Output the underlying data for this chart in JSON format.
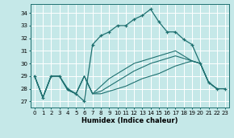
{
  "xlabel": "Humidex (Indice chaleur)",
  "bg_color": "#c5e8e8",
  "grid_color": "#ffffff",
  "line_color": "#1e7070",
  "xlim": [
    -0.5,
    23.5
  ],
  "ylim": [
    26.5,
    34.7
  ],
  "yticks": [
    27,
    28,
    29,
    30,
    31,
    32,
    33,
    34
  ],
  "xticks": [
    0,
    1,
    2,
    3,
    4,
    5,
    6,
    7,
    8,
    9,
    10,
    11,
    12,
    13,
    14,
    15,
    16,
    17,
    18,
    19,
    20,
    21,
    22,
    23
  ],
  "curve_main": [
    29.0,
    27.3,
    29.0,
    29.0,
    28.0,
    27.6,
    27.0,
    31.5,
    32.2,
    32.5,
    33.0,
    33.0,
    33.5,
    33.8,
    34.3,
    33.3,
    32.5,
    32.5,
    31.9,
    31.5,
    30.0,
    28.5,
    28.0,
    28.0
  ],
  "curve2": [
    29.0,
    27.3,
    29.0,
    29.0,
    27.9,
    27.6,
    29.0,
    27.6,
    27.6,
    27.8,
    28.0,
    28.2,
    28.5,
    28.8,
    29.0,
    29.2,
    29.5,
    29.8,
    30.0,
    30.2,
    30.0,
    28.5,
    28.0,
    28.0
  ],
  "curve3": [
    29.0,
    27.3,
    29.0,
    29.0,
    27.9,
    27.6,
    29.0,
    27.6,
    27.8,
    28.2,
    28.6,
    29.0,
    29.4,
    29.7,
    30.0,
    30.2,
    30.4,
    30.6,
    30.4,
    30.2,
    30.0,
    28.5,
    28.0,
    28.0
  ],
  "curve4": [
    29.0,
    27.3,
    29.0,
    29.0,
    27.9,
    27.6,
    29.0,
    27.6,
    28.2,
    28.8,
    29.2,
    29.6,
    30.0,
    30.2,
    30.4,
    30.6,
    30.8,
    31.0,
    30.6,
    30.2,
    30.0,
    28.5,
    28.0,
    28.0
  ]
}
